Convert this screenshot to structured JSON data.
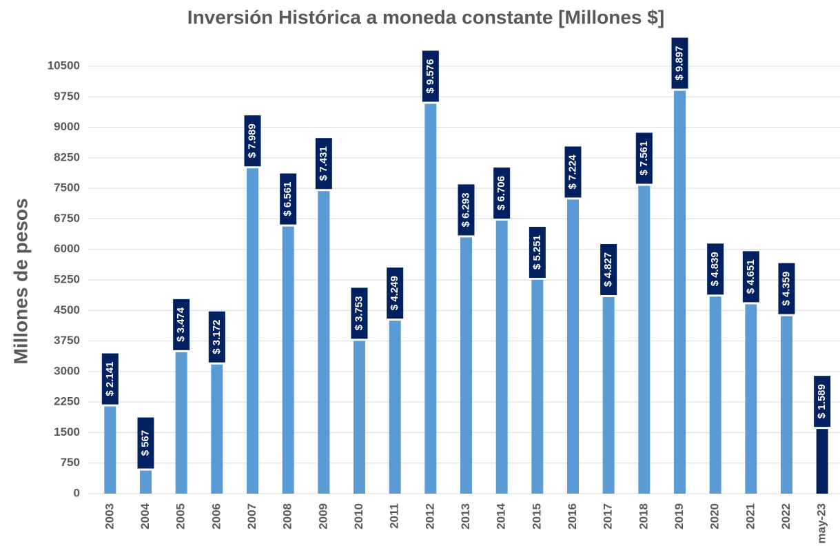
{
  "chart_data": {
    "type": "bar",
    "title": "Inversión Histórica a moneda constante [Millones $]",
    "y_label": "Millones de pesos",
    "categories": [
      "2003",
      "2004",
      "2005",
      "2006",
      "2007",
      "2008",
      "2009",
      "2010",
      "2011",
      "2012",
      "2013",
      "2014",
      "2015",
      "2016",
      "2017",
      "2018",
      "2019",
      "2020",
      "2021",
      "2022",
      "may-23"
    ],
    "values": [
      2141,
      567,
      3474,
      3172,
      7989,
      6561,
      7431,
      3753,
      4249,
      9576,
      6293,
      6706,
      5251,
      7224,
      4827,
      7561,
      9897,
      4839,
      4651,
      4359,
      1589
    ],
    "value_labels": [
      "$ 2.141",
      "$ 567",
      "$ 3.474",
      "$ 3.172",
      "$ 7.989",
      "$ 6.561",
      "$ 7.431",
      "$ 3.753",
      "$ 4.249",
      "$ 9.576",
      "$ 6.293",
      "$ 6.706",
      "$ 5.251",
      "$ 7.224",
      "$ 4.827",
      "$ 7.561",
      "$ 9.897",
      "$ 4.839",
      "$ 4.651",
      "$ 4.359",
      "$ 1.589"
    ],
    "colors": [
      "#5b9bd5",
      "#5b9bd5",
      "#5b9bd5",
      "#5b9bd5",
      "#5b9bd5",
      "#5b9bd5",
      "#5b9bd5",
      "#5b9bd5",
      "#5b9bd5",
      "#5b9bd5",
      "#5b9bd5",
      "#5b9bd5",
      "#5b9bd5",
      "#5b9bd5",
      "#5b9bd5",
      "#5b9bd5",
      "#5b9bd5",
      "#5b9bd5",
      "#5b9bd5",
      "#5b9bd5",
      "#002060"
    ],
    "label_box_color": "#002060",
    "ylim": [
      0,
      10500
    ],
    "yticks": [
      0,
      750,
      1500,
      2250,
      3000,
      3750,
      4500,
      5250,
      6000,
      6750,
      7500,
      8250,
      9000,
      9750,
      10500
    ],
    "grid": true
  }
}
